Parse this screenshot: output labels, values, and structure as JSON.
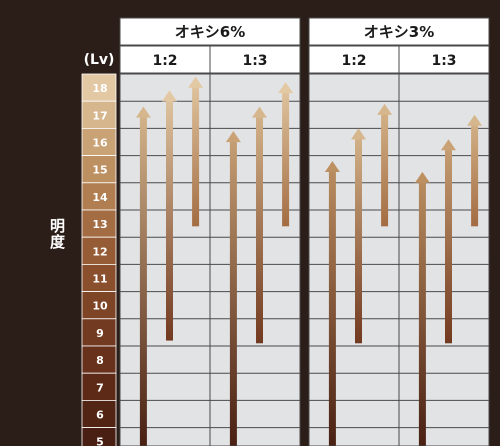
{
  "chart_data": {
    "type": "range-arrows",
    "ylabel": "明度",
    "unit_label": "(Lv)",
    "levels": [
      18,
      17,
      16,
      15,
      14,
      13,
      12,
      11,
      10,
      9,
      8,
      7,
      6,
      5
    ],
    "level_colors": {
      "18": "#e2c9a4",
      "17": "#d6b68c",
      "16": "#c9a276",
      "15": "#bd9062",
      "14": "#b07e50",
      "13": "#a36c42",
      "12": "#965c36",
      "11": "#8a4f2d",
      "10": "#7e4426",
      "9": "#723a20",
      "8": "#67311b",
      "7": "#5c2a17",
      "6": "#522414",
      "5": "#481f12"
    },
    "groups": [
      {
        "title": "オキシ6%",
        "ratios": [
          {
            "label": "1:2",
            "arrows": [
              {
                "from": 4.5,
                "to": 17.3
              },
              {
                "from": 8.7,
                "to": 17.9
              },
              {
                "from": 12.9,
                "to": 18.4
              }
            ]
          },
          {
            "label": "1:3",
            "arrows": [
              {
                "from": 4.5,
                "to": 16.4
              },
              {
                "from": 8.6,
                "to": 17.3
              },
              {
                "from": 12.9,
                "to": 18.2
              }
            ]
          }
        ]
      },
      {
        "title": "オキシ3%",
        "ratios": [
          {
            "label": "1:2",
            "arrows": [
              {
                "from": 4.5,
                "to": 15.3
              },
              {
                "from": 8.6,
                "to": 16.5
              },
              {
                "from": 12.9,
                "to": 17.4
              }
            ]
          },
          {
            "label": "1:3",
            "arrows": [
              {
                "from": 4.5,
                "to": 14.9
              },
              {
                "from": 8.6,
                "to": 16.1
              },
              {
                "from": 12.9,
                "to": 17.0
              }
            ]
          }
        ]
      }
    ]
  }
}
